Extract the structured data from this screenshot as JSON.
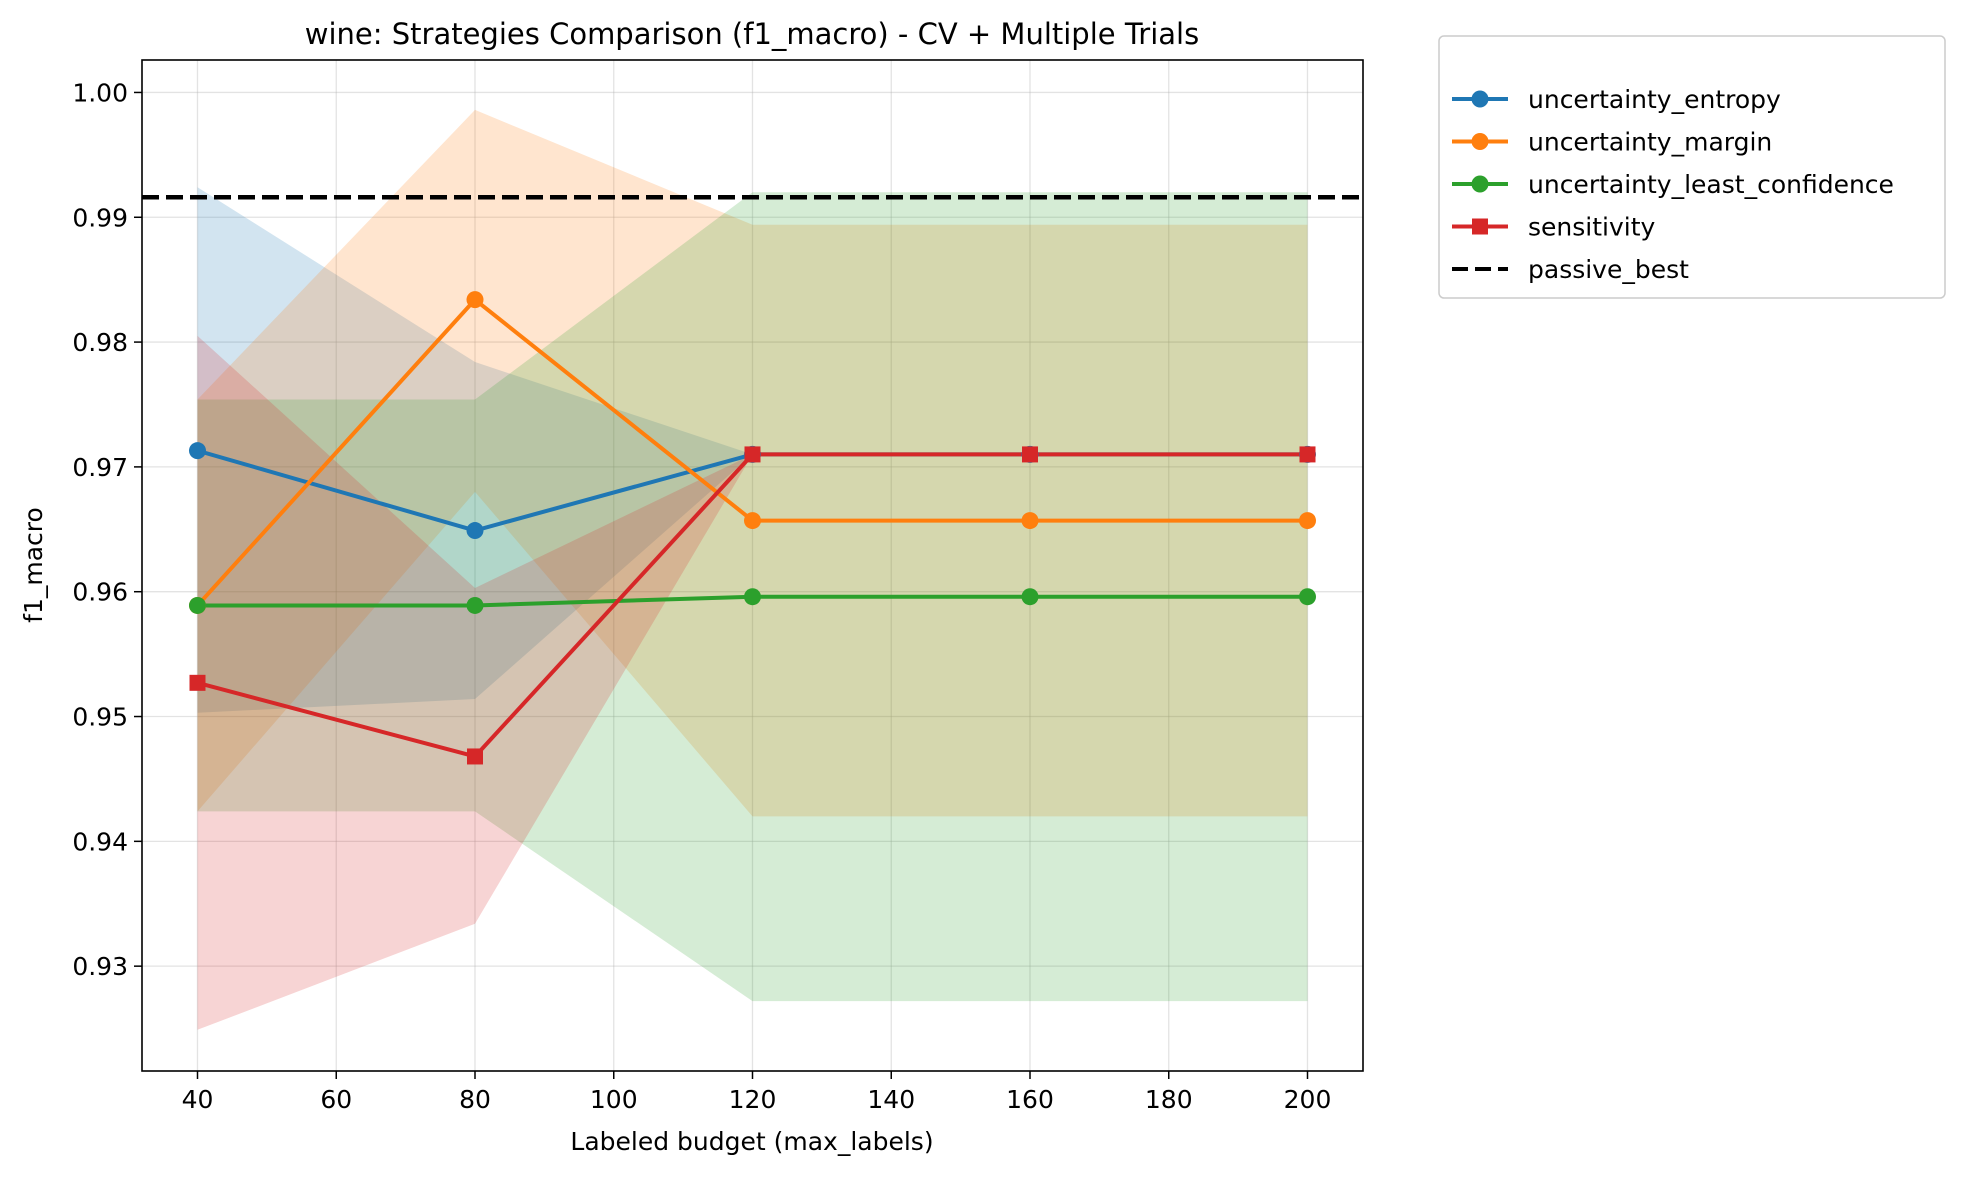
{
  "chart_data": {
    "type": "line",
    "title": "wine: Strategies Comparison (f1_macro) - CV + Multiple Trials",
    "xlabel": "Labeled budget (max_labels)",
    "ylabel": "f1_macro",
    "xlim": [
      32,
      208
    ],
    "ylim": [
      0.9216,
      1.0026
    ],
    "xticks": [
      40,
      60,
      80,
      100,
      120,
      140,
      160,
      180,
      200
    ],
    "xtick_labels": [
      "40",
      "60",
      "80",
      "100",
      "120",
      "140",
      "160",
      "180",
      "200"
    ],
    "yticks": [
      0.93,
      0.94,
      0.95,
      0.96,
      0.97,
      0.98,
      0.99,
      1.0
    ],
    "ytick_labels": [
      "0.93",
      "0.94",
      "0.95",
      "0.96",
      "0.97",
      "0.98",
      "0.99",
      "1.00"
    ],
    "grid": true,
    "legend_position": "outside-top-right",
    "x": [
      40,
      80,
      120,
      160,
      200
    ],
    "series": [
      {
        "name": "uncertainty_entropy",
        "color": "#1f77b4",
        "marker": "circle",
        "values": [
          0.9713,
          0.9649,
          0.971,
          0.971,
          0.971
        ],
        "band_lower": [
          0.9503,
          0.9514,
          0.971,
          0.971,
          0.971
        ],
        "band_upper": [
          0.9924,
          0.9784,
          0.971,
          0.971,
          0.971
        ]
      },
      {
        "name": "uncertainty_margin",
        "color": "#ff7f0e",
        "marker": "circle",
        "values": [
          0.9589,
          0.9834,
          0.9657,
          0.9657,
          0.9657
        ],
        "band_lower": [
          0.9424,
          0.968,
          0.942,
          0.942,
          0.942
        ],
        "band_upper": [
          0.9754,
          0.9986,
          0.9894,
          0.9894,
          0.9894
        ]
      },
      {
        "name": "uncertainty_least_confidence",
        "color": "#2ca02c",
        "marker": "circle",
        "values": [
          0.9589,
          0.9589,
          0.9596,
          0.9596,
          0.9596
        ],
        "band_lower": [
          0.9424,
          0.9424,
          0.9272,
          0.9272,
          0.9272
        ],
        "band_upper": [
          0.9754,
          0.9754,
          0.992,
          0.992,
          0.992
        ]
      },
      {
        "name": "sensitivity",
        "color": "#d62728",
        "marker": "square",
        "values": [
          0.9527,
          0.9468,
          0.971,
          0.971,
          0.971
        ],
        "band_lower": [
          0.9249,
          0.9334,
          0.971,
          0.971,
          0.971
        ],
        "band_upper": [
          0.9805,
          0.9603,
          0.971,
          0.971,
          0.971
        ]
      }
    ],
    "reference_lines": [
      {
        "name": "passive_best",
        "y": 0.9916,
        "color": "#000000",
        "style": "dashed"
      }
    ]
  }
}
